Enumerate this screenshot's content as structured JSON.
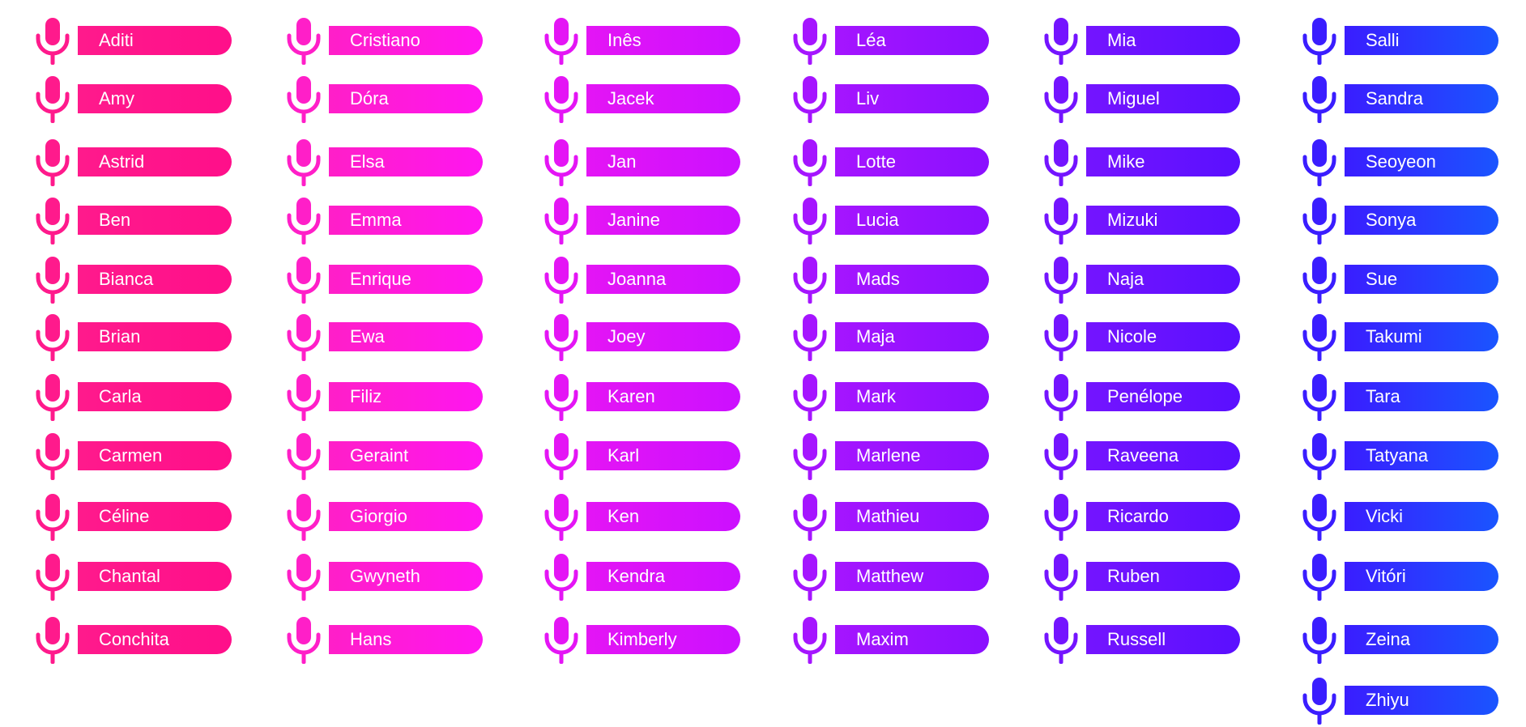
{
  "columns": [
    {
      "colors": [
        "#ff1a8c",
        "#ff0f8a"
      ],
      "voices": [
        "Aditi",
        "Amy",
        "Astrid",
        "Ben",
        "Bianca",
        "Brian",
        "Carla",
        "Carmen",
        "Céline",
        "Chantal",
        "Conchita"
      ]
    },
    {
      "colors": [
        "#ff1fc8",
        "#ff15f0"
      ],
      "voices": [
        "Cristiano",
        "Dóra",
        "Elsa",
        "Emma",
        "Enrique",
        "Ewa",
        "Filiz",
        "Geraint",
        "Giorgio",
        "Gwyneth",
        "Hans"
      ]
    },
    {
      "colors": [
        "#e415f5",
        "#cc10ff"
      ],
      "voices": [
        "Inês",
        "Jacek",
        "Jan",
        "Janine",
        "Joanna",
        "Joey",
        "Karen",
        "Karl",
        "Ken",
        "Kendra",
        "Kimberly"
      ]
    },
    {
      "colors": [
        "#a515ff",
        "#8a10ff"
      ],
      "voices": [
        "Léa",
        "Liv",
        "Lotte",
        "Lucia",
        "Mads",
        "Maja",
        "Mark",
        "Marlene",
        "Mathieu",
        "Matthew",
        "Maxim"
      ]
    },
    {
      "colors": [
        "#7414ff",
        "#5a10ff"
      ],
      "voices": [
        "Mia",
        "Miguel",
        "Mike",
        "Mizuki",
        "Naja",
        "Nicole",
        "Penélope",
        "Raveena",
        "Ricardo",
        "Ruben",
        "Russell"
      ]
    },
    {
      "colors": [
        "#3a1dff",
        "#1a55ff"
      ],
      "voices": [
        "Salli",
        "Sandra",
        "Seoyeon",
        "Sonya",
        "Sue",
        "Takumi",
        "Tara",
        "Tatyana",
        "Vicki",
        "Vitóri",
        "Zeina",
        "Zhiyu"
      ]
    }
  ]
}
